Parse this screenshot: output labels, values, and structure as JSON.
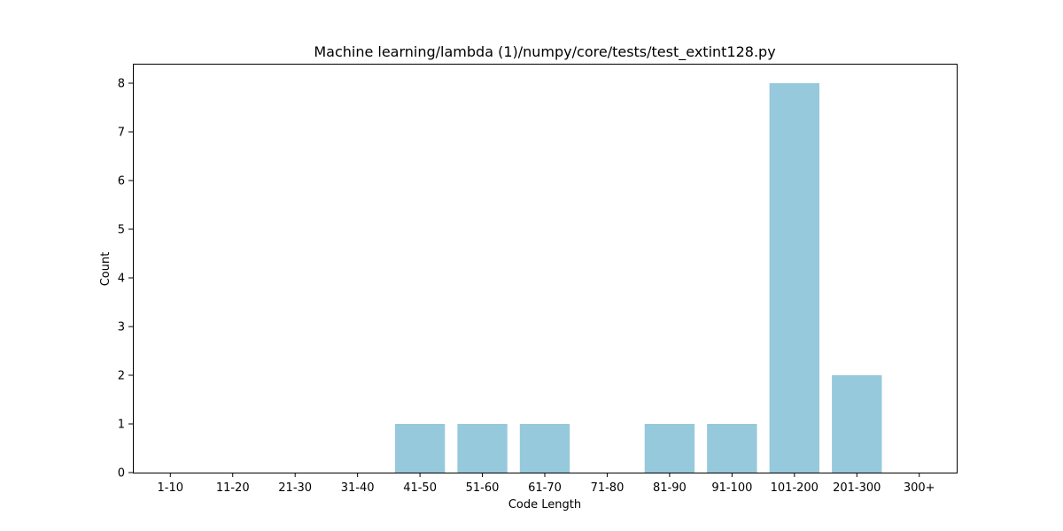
{
  "chart_data": {
    "type": "bar",
    "title": "Machine learning/lambda (1)/numpy/core/tests/test_extint128.py",
    "xlabel": "Code Length",
    "ylabel": "Count",
    "categories": [
      "1-10",
      "11-20",
      "21-30",
      "31-40",
      "41-50",
      "51-60",
      "61-70",
      "71-80",
      "81-90",
      "91-100",
      "101-200",
      "201-300",
      "300+"
    ],
    "values": [
      0,
      0,
      0,
      0,
      1,
      1,
      1,
      0,
      1,
      1,
      8,
      2,
      0
    ],
    "ylim": [
      0,
      8.4
    ],
    "yticks": [
      0,
      1,
      2,
      3,
      4,
      5,
      6,
      7,
      8
    ],
    "bar_color": "#96c9dc",
    "grid": false
  }
}
